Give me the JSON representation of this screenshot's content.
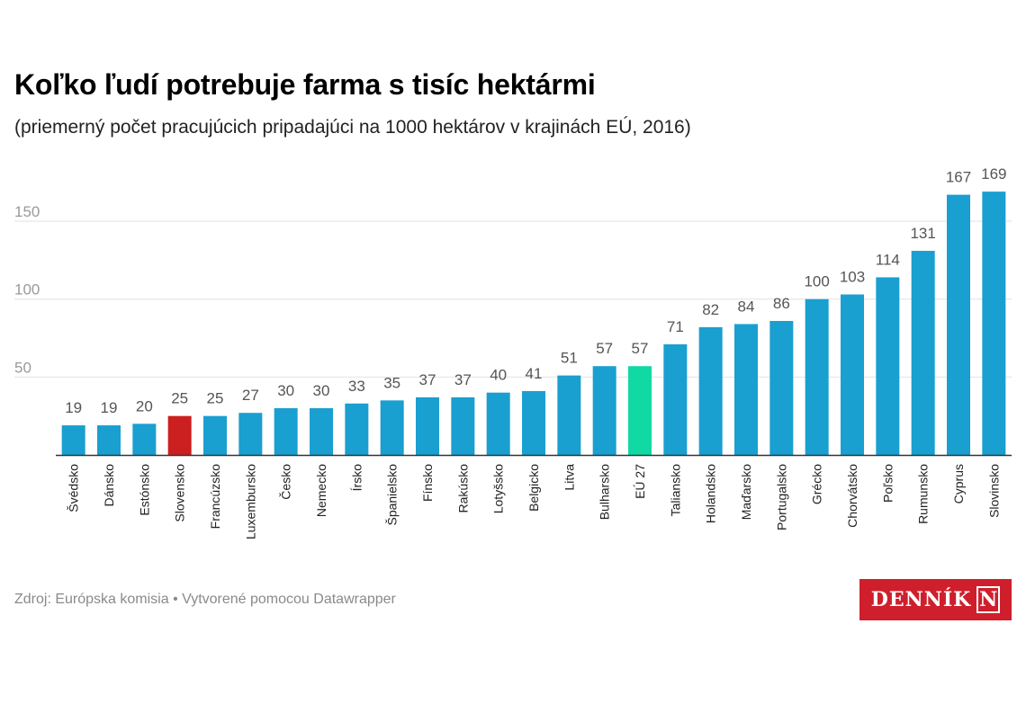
{
  "title": "Koľko ľudí potrebuje farma s tisíc hektármi",
  "subtitle": "(priemerný počet pracujúcich pripadajúci na 1000 hektárov v krajinách EÚ, 2016)",
  "footer": "Zdroj: Európska komisia • Vytvorené pomocou Datawrapper",
  "logo": {
    "text": "DENNÍK",
    "mark": "N",
    "color": "#cf1f2c"
  },
  "colors": {
    "default": "#1a9fd1",
    "highlight_slovensko": "#cc1f1f",
    "highlight_eu": "#11d9a3"
  },
  "chart_data": {
    "type": "bar",
    "categories": [
      "Švédsko",
      "Dánsko",
      "Estónsko",
      "Slovensko",
      "Francúzsko",
      "Luxembursko",
      "Česko",
      "Nemecko",
      "Írsko",
      "Španielsko",
      "Fínsko",
      "Rakúsko",
      "Lotyšsko",
      "Belgicko",
      "Litva",
      "Bulharsko",
      "EÚ 27",
      "Taliansko",
      "Holandsko",
      "Maďarsko",
      "Portugalsko",
      "Grécko",
      "Chorvátsko",
      "Poľsko",
      "Rumunsko",
      "Cyprus",
      "Slovinsko"
    ],
    "values": [
      19,
      19,
      20,
      25,
      25,
      27,
      30,
      30,
      33,
      35,
      37,
      37,
      40,
      41,
      51,
      57,
      57,
      71,
      82,
      84,
      86,
      100,
      103,
      114,
      131,
      167,
      169
    ],
    "highlight": {
      "Slovensko": "#cc1f1f",
      "EÚ 27": "#11d9a3"
    },
    "yticks": [
      50,
      100,
      150
    ],
    "ylim": [
      0,
      175
    ],
    "grid": true
  }
}
